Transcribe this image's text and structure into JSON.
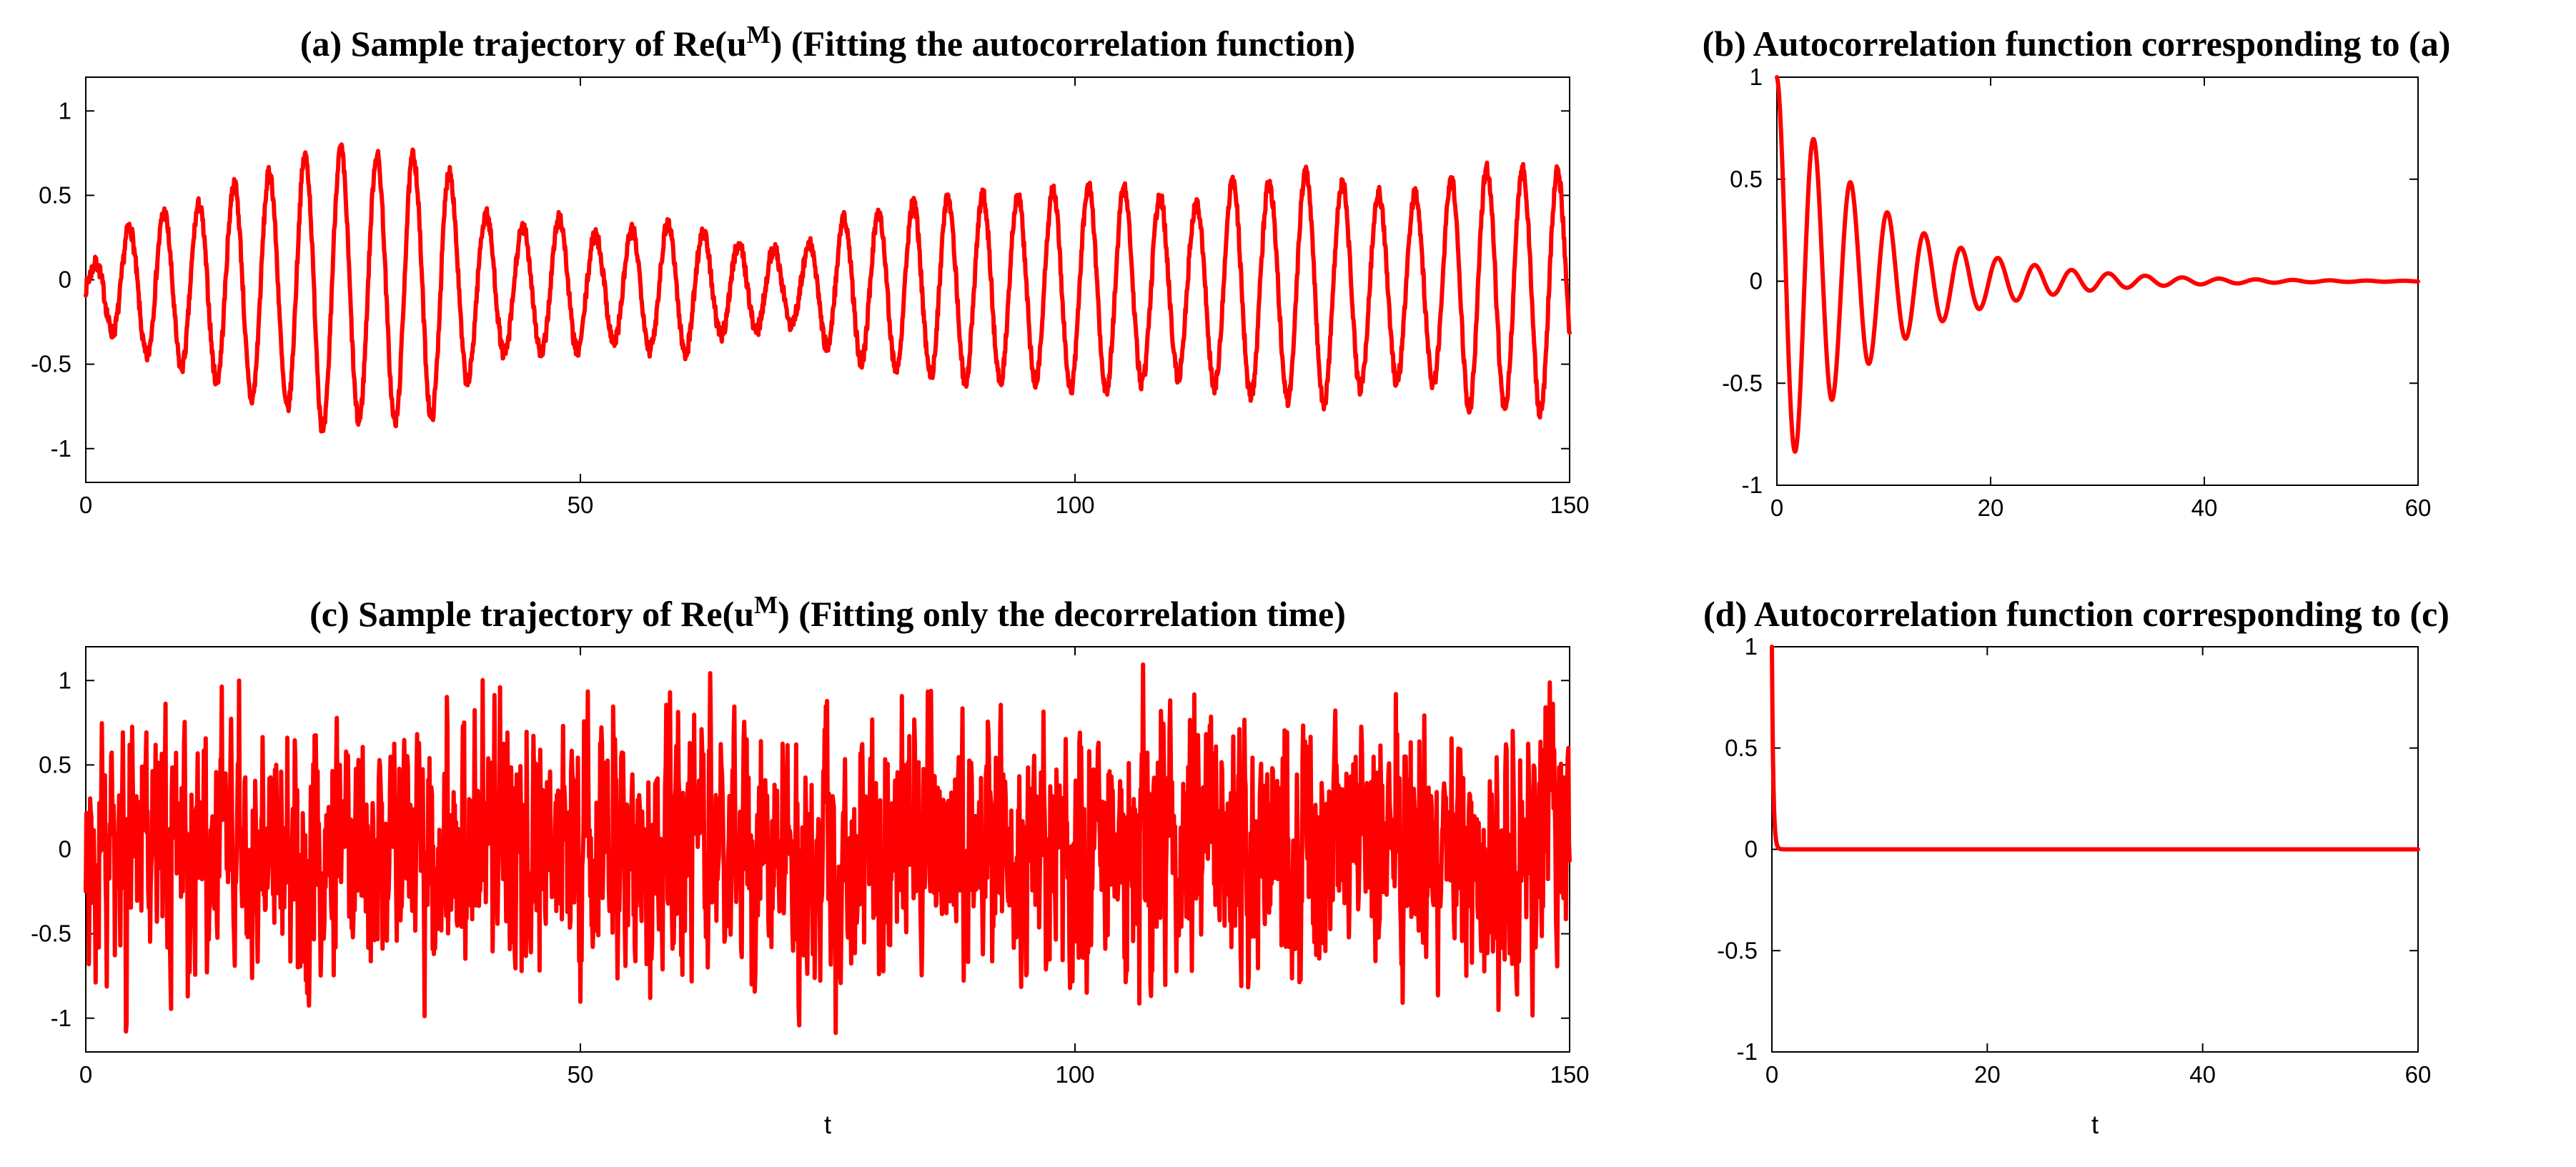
{
  "chart_data": [
    {
      "id": "a",
      "type": "line",
      "title": {
        "prefix": "(a)  Sample trajectory of Re(u",
        "superscript": "M",
        "suffix": ") (Fitting the autocorrelation function)"
      },
      "xlabel": "",
      "ylabel": "",
      "xlim": [
        0,
        150
      ],
      "ylim": [
        -1.2,
        1.2
      ],
      "xticks": [
        0,
        50,
        100,
        150
      ],
      "yticks": [
        -1,
        -0.5,
        0,
        0.5,
        1
      ],
      "grid": false,
      "series": [
        {
          "color": "#ff0000",
          "kind": "oscillatory_trajectory",
          "period": 3.6,
          "amplitude_envelope": {
            "t": [
              0,
              4,
              8,
              12,
              16,
              20,
              24,
              28,
              32,
              36,
              40,
              44,
              48,
              52,
              56,
              60,
              64,
              68,
              72,
              76,
              80,
              84,
              88,
              92,
              96,
              100,
              104,
              108,
              112,
              116,
              120,
              124,
              128,
              132,
              136,
              140,
              144,
              148,
              150
            ],
            "values": [
              0.08,
              0.35,
              0.45,
              0.5,
              0.65,
              0.7,
              0.85,
              0.78,
              0.8,
              0.75,
              0.45,
              0.35,
              0.42,
              0.3,
              0.35,
              0.4,
              0.28,
              0.25,
              0.2,
              0.4,
              0.45,
              0.5,
              0.55,
              0.55,
              0.55,
              0.6,
              0.6,
              0.55,
              0.5,
              0.65,
              0.62,
              0.72,
              0.6,
              0.55,
              0.55,
              0.72,
              0.7,
              0.75,
              0.6
            ]
          }
        }
      ]
    },
    {
      "id": "b",
      "type": "line",
      "title": {
        "prefix": "(b)  Autocorrelation function corresponding to (a)",
        "superscript": "",
        "suffix": ""
      },
      "xlabel": "",
      "ylabel": "",
      "xlim": [
        0,
        60
      ],
      "ylim": [
        -1,
        1
      ],
      "xticks": [
        0,
        20,
        40,
        60
      ],
      "yticks": [
        -1,
        -0.5,
        0,
        0.5,
        1
      ],
      "grid": false,
      "series": [
        {
          "color": "#ff0000",
          "kind": "damped_cosine",
          "decay_rate": 0.105,
          "period": 3.45
        }
      ]
    },
    {
      "id": "c",
      "type": "line",
      "title": {
        "prefix": "(c)  Sample trajectory of Re(u",
        "superscript": "M",
        "suffix": ") (Fitting only the decorrelation time)"
      },
      "xlabel": "t",
      "ylabel": "",
      "xlim": [
        0,
        150
      ],
      "ylim": [
        -1.2,
        1.2
      ],
      "xticks": [
        0,
        50,
        100,
        150
      ],
      "yticks": [
        -1,
        -0.5,
        0,
        0.5,
        1
      ],
      "grid": false,
      "series": [
        {
          "color": "#ff0000",
          "kind": "noisy_trajectory",
          "std": 0.36,
          "min": -1.2,
          "max": 1.12
        }
      ]
    },
    {
      "id": "d",
      "type": "line",
      "title": {
        "prefix": "(d)  Autocorrelation function corresponding to (c)",
        "superscript": "",
        "suffix": ""
      },
      "xlabel": "t",
      "ylabel": "",
      "xlim": [
        0,
        60
      ],
      "ylim": [
        -1,
        1
      ],
      "xticks": [
        0,
        20,
        40,
        60
      ],
      "yticks": [
        -1,
        -0.5,
        0,
        0.5,
        1
      ],
      "grid": false,
      "series": [
        {
          "color": "#ff0000",
          "kind": "exponential_decay",
          "decay_rate": 8
        }
      ]
    }
  ]
}
